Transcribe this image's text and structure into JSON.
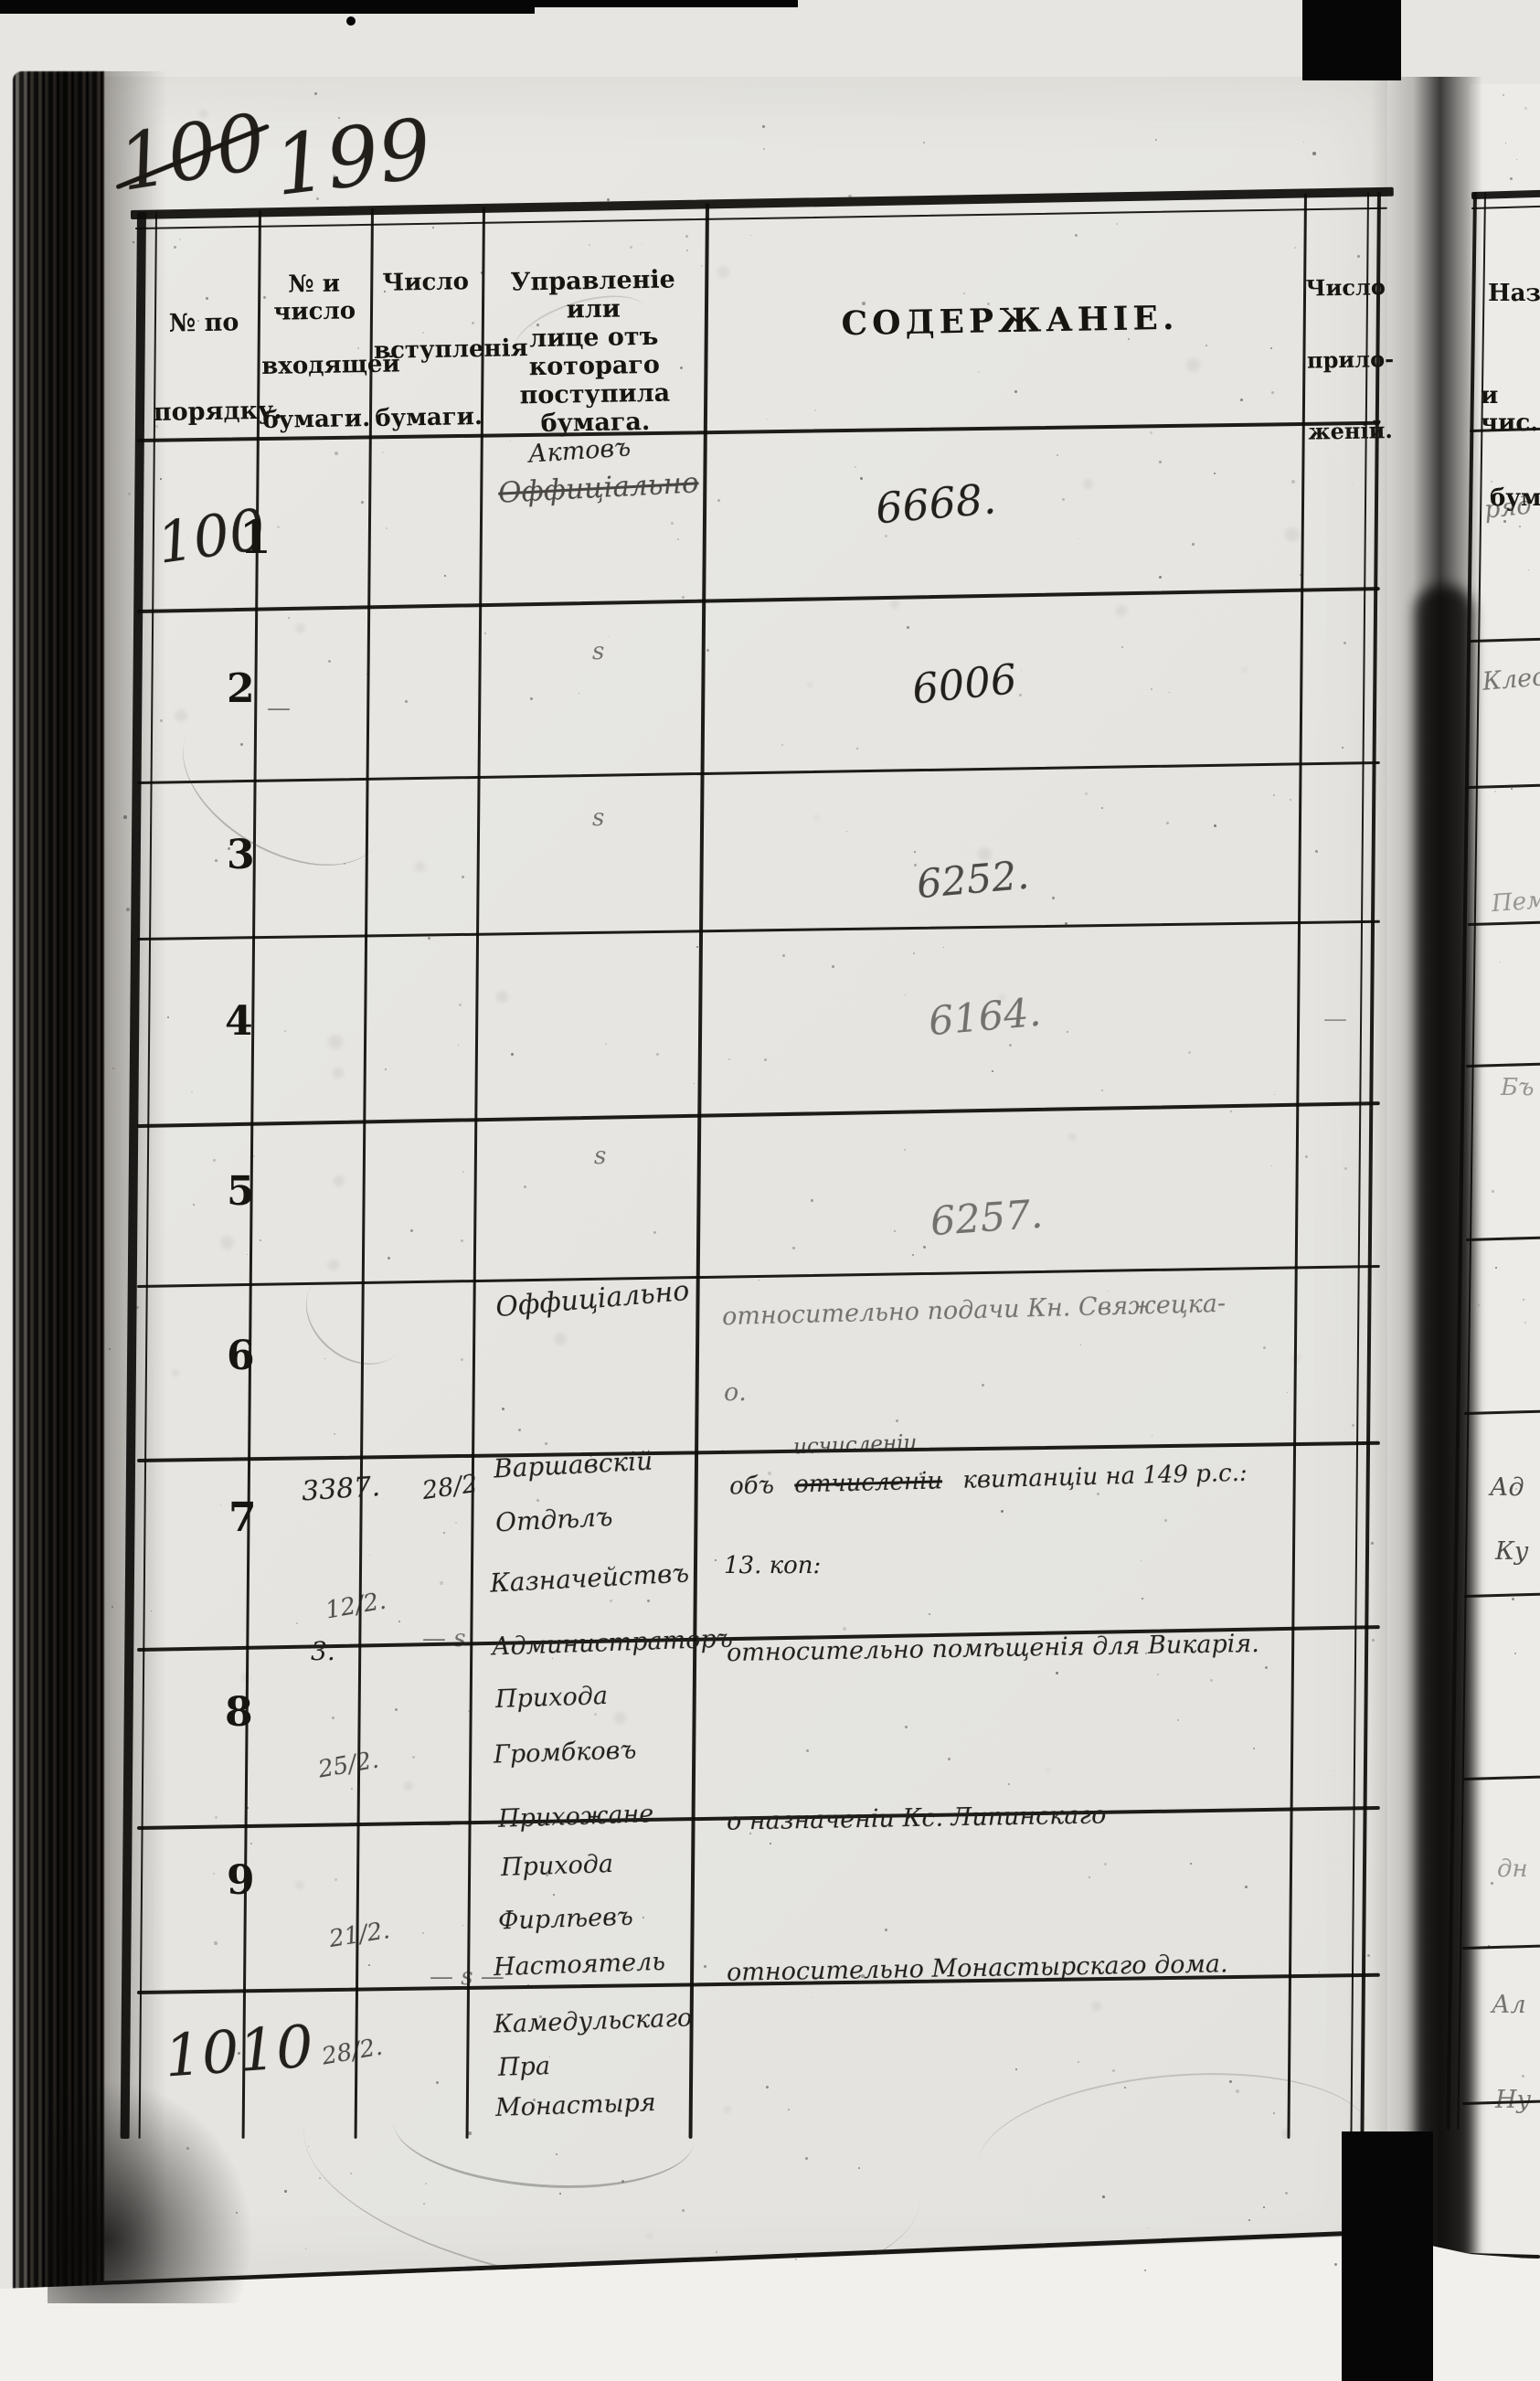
{
  "page": {
    "number_crossed_out": "100",
    "number_current": "199"
  },
  "table": {
    "headers": {
      "order": [
        "№ по",
        "порядку."
      ],
      "incoming": [
        "№ и число",
        "входящей",
        "бумаги."
      ],
      "received": [
        "Число",
        "вступленія",
        "бумаги."
      ],
      "source": [
        "Управленіе или",
        "лице отъ котораго",
        "поступила бумага."
      ],
      "contents": "СОДЕРЖАНІЕ.",
      "attachments": [
        "Число",
        "прило-",
        "женій."
      ]
    },
    "rows": [
      {
        "order_hw": "100",
        "order_printed": "1",
        "source_line1": "Актовъ",
        "source_struck": "Оффиціально",
        "contents": "6668."
      },
      {
        "order": "2",
        "incoming_dash": "—",
        "source_ditto": "ѕ",
        "contents": "6006"
      },
      {
        "order": "3",
        "source_ditto": "ѕ",
        "contents": "6252."
      },
      {
        "order": "4",
        "contents": "6164.",
        "attachments_dash": "—"
      },
      {
        "order": "5",
        "source_ditto": "ѕ",
        "contents": "6257."
      },
      {
        "order": "6",
        "source": "Оффиціально",
        "contents_line1": "относительно подачи Кн. Свяжецка-",
        "contents_line2": "о."
      },
      {
        "order": "7",
        "incoming_no": "3387.",
        "incoming_date": "12/2.",
        "received_date": "28/2",
        "source_lines": [
          "Варшавскій",
          "Отдѣлъ",
          "Казначействъ"
        ],
        "contents_prefix": "объ",
        "contents_inserted": "исчисленіи",
        "contents_struck": "отчисленіи",
        "contents_rest": "квитанціи  на 149 р.с.:",
        "contents_line2": "13. коп:"
      },
      {
        "order": "8",
        "incoming_no": "3.",
        "incoming_date": "25/2.",
        "received_ditto": "— ѕ",
        "source_lines": [
          "Администраторъ",
          "Прихода",
          "Громбковъ"
        ],
        "contents": "относительно помѣщенія для Викарія."
      },
      {
        "order": "9",
        "incoming_date": "21/2.",
        "received_dash": "—",
        "source_lines": [
          "Прихожане",
          "Прихода",
          "Фирлѣевъ"
        ],
        "contents": "о назначеніи Кс. Липинскаго"
      },
      {
        "order": "1010",
        "incoming_date": "28/2.",
        "received_ditto": "— ѕ —",
        "source_lines": [
          "Настоятель",
          "Камедульскаго",
          "Пра",
          "Монастыря"
        ],
        "contents": "относительно Монастырскаго дома."
      }
    ]
  },
  "next_page": {
    "header_lines": [
      "Назв",
      "и чис.",
      "бума"
    ],
    "fragments": [
      "ряд",
      "Клес",
      "Пем",
      "Бъ",
      "Ад",
      "Ку",
      "дн",
      "Ал",
      "Ну"
    ]
  }
}
